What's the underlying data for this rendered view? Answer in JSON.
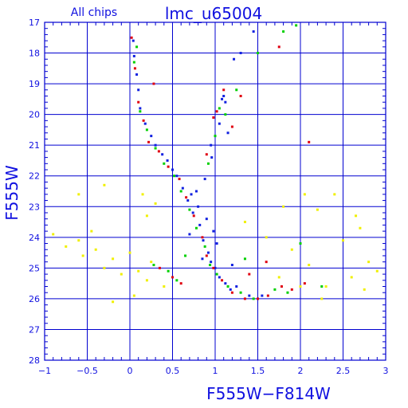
{
  "chart_data": {
    "type": "scatter",
    "title": "lmc_u65004",
    "subtitle": "All chips",
    "xlabel": "F555W−F814W",
    "ylabel": "F555W",
    "xlim": [
      -1,
      3
    ],
    "ylim": [
      28,
      17
    ],
    "y_axis_inverted": true,
    "grid": true,
    "legend": "none",
    "x_tick_labels": [
      "−1",
      "−0.5",
      "0",
      "0.5",
      "1",
      "1.5",
      "2",
      "2.5",
      "3"
    ],
    "y_tick_labels": [
      "17",
      "18",
      "19",
      "20",
      "21",
      "22",
      "23",
      "24",
      "25",
      "26",
      "27",
      "28"
    ],
    "x_ticks": [
      -1,
      -0.5,
      0,
      0.5,
      1,
      1.5,
      2,
      2.5,
      3
    ],
    "y_ticks": [
      17,
      18,
      19,
      20,
      21,
      22,
      23,
      24,
      25,
      26,
      27,
      28
    ],
    "colors": {
      "axis": "#0000d0",
      "text": "#1010e0",
      "series": [
        "#1020e0",
        "#e00010",
        "#00d000",
        "#f0f000"
      ]
    },
    "series": [
      {
        "color": "#1020e0",
        "points": [
          [
            0.74,
            23.2
          ],
          [
            0.82,
            23.6
          ],
          [
            0.86,
            24.1
          ],
          [
            0.92,
            24.5
          ],
          [
            0.95,
            24.8
          ],
          [
            1.0,
            25.0
          ],
          [
            1.05,
            25.3
          ],
          [
            1.12,
            25.5
          ],
          [
            1.18,
            25.7
          ],
          [
            0.68,
            22.8
          ],
          [
            0.62,
            22.4
          ],
          [
            0.55,
            22.0
          ],
          [
            0.5,
            21.8
          ],
          [
            0.44,
            21.5
          ],
          [
            0.38,
            21.3
          ],
          [
            0.3,
            21.0
          ],
          [
            0.25,
            20.7
          ],
          [
            0.18,
            20.3
          ],
          [
            0.12,
            19.8
          ],
          [
            0.1,
            19.2
          ],
          [
            0.08,
            18.7
          ],
          [
            0.05,
            18.1
          ],
          [
            0.04,
            17.6
          ],
          [
            1.08,
            19.5
          ],
          [
            1.1,
            19.4
          ],
          [
            1.12,
            19.6
          ],
          [
            1.05,
            20.3
          ],
          [
            1.15,
            20.6
          ],
          [
            0.96,
            21.4
          ],
          [
            0.88,
            22.1
          ],
          [
            0.78,
            22.5
          ],
          [
            0.7,
            23.9
          ],
          [
            0.85,
            24.7
          ],
          [
            1.25,
            25.6
          ],
          [
            1.4,
            25.9
          ],
          [
            1.55,
            25.9
          ],
          [
            1.2,
            24.9
          ],
          [
            0.9,
            23.4
          ],
          [
            0.8,
            23.0
          ],
          [
            0.72,
            22.6
          ],
          [
            1.22,
            18.2
          ],
          [
            1.3,
            18.0
          ],
          [
            1.45,
            17.3
          ],
          [
            0.95,
            21.0
          ],
          [
            1.02,
            24.2
          ],
          [
            0.98,
            23.8
          ]
        ]
      },
      {
        "color": "#e00010",
        "points": [
          [
            0.02,
            17.5
          ],
          [
            0.06,
            18.5
          ],
          [
            0.1,
            19.6
          ],
          [
            0.16,
            20.2
          ],
          [
            0.22,
            20.9
          ],
          [
            0.34,
            21.2
          ],
          [
            0.45,
            21.7
          ],
          [
            0.58,
            22.1
          ],
          [
            0.66,
            22.7
          ],
          [
            0.75,
            23.3
          ],
          [
            0.85,
            24.0
          ],
          [
            0.9,
            24.6
          ],
          [
            0.98,
            25.0
          ],
          [
            1.08,
            25.4
          ],
          [
            1.2,
            25.8
          ],
          [
            1.35,
            26.0
          ],
          [
            1.5,
            26.0
          ],
          [
            1.62,
            25.9
          ],
          [
            1.78,
            25.6
          ],
          [
            2.05,
            25.5
          ],
          [
            1.1,
            19.2
          ],
          [
            1.02,
            19.9
          ],
          [
            1.2,
            20.4
          ],
          [
            0.9,
            21.3
          ],
          [
            0.5,
            25.3
          ],
          [
            0.35,
            25.0
          ],
          [
            0.6,
            25.5
          ],
          [
            1.4,
            25.2
          ],
          [
            1.9,
            25.7
          ],
          [
            1.6,
            24.8
          ],
          [
            0.98,
            20.1
          ],
          [
            1.3,
            19.4
          ],
          [
            1.75,
            17.8
          ],
          [
            2.1,
            20.9
          ],
          [
            0.28,
            19.0
          ]
        ]
      },
      {
        "color": "#00d000",
        "points": [
          [
            0.12,
            19.9
          ],
          [
            0.2,
            20.5
          ],
          [
            0.3,
            21.1
          ],
          [
            0.4,
            21.6
          ],
          [
            0.52,
            22.0
          ],
          [
            0.6,
            22.5
          ],
          [
            0.7,
            23.1
          ],
          [
            0.78,
            23.7
          ],
          [
            0.88,
            24.3
          ],
          [
            0.94,
            24.9
          ],
          [
            1.02,
            25.2
          ],
          [
            1.15,
            25.6
          ],
          [
            1.3,
            25.8
          ],
          [
            1.45,
            26.0
          ],
          [
            1.7,
            25.7
          ],
          [
            1.85,
            25.8
          ],
          [
            2.25,
            25.6
          ],
          [
            1.12,
            20.0
          ],
          [
            1.0,
            20.7
          ],
          [
            0.92,
            21.6
          ],
          [
            1.05,
            19.8
          ],
          [
            1.25,
            19.2
          ],
          [
            1.5,
            18.0
          ],
          [
            1.8,
            17.3
          ],
          [
            1.95,
            17.1
          ],
          [
            0.45,
            25.1
          ],
          [
            0.55,
            25.4
          ],
          [
            0.28,
            24.9
          ],
          [
            1.35,
            24.7
          ],
          [
            2.0,
            24.2
          ],
          [
            0.05,
            18.3
          ],
          [
            0.08,
            17.8
          ],
          [
            0.65,
            24.6
          ]
        ]
      },
      {
        "color": "#f0f000",
        "points": [
          [
            -0.9,
            23.9
          ],
          [
            -0.75,
            24.3
          ],
          [
            -0.6,
            24.1
          ],
          [
            -0.55,
            24.6
          ],
          [
            -0.45,
            23.8
          ],
          [
            -0.4,
            24.4
          ],
          [
            -0.3,
            25.0
          ],
          [
            -0.2,
            24.7
          ],
          [
            -0.1,
            25.2
          ],
          [
            0.0,
            24.5
          ],
          [
            0.1,
            25.1
          ],
          [
            0.2,
            23.3
          ],
          [
            0.25,
            24.8
          ],
          [
            0.3,
            22.9
          ],
          [
            0.4,
            25.6
          ],
          [
            0.2,
            25.4
          ],
          [
            -0.6,
            22.6
          ],
          [
            -0.3,
            22.3
          ],
          [
            0.15,
            22.6
          ],
          [
            1.9,
            24.4
          ],
          [
            2.1,
            24.9
          ],
          [
            2.2,
            23.1
          ],
          [
            2.3,
            25.6
          ],
          [
            2.4,
            22.6
          ],
          [
            2.5,
            24.1
          ],
          [
            2.6,
            25.3
          ],
          [
            2.7,
            23.7
          ],
          [
            2.8,
            24.8
          ],
          [
            2.9,
            25.1
          ],
          [
            1.75,
            25.3
          ],
          [
            2.0,
            25.6
          ],
          [
            2.25,
            26.0
          ],
          [
            1.6,
            24.0
          ],
          [
            1.35,
            23.5
          ],
          [
            1.8,
            23.0
          ],
          [
            2.05,
            22.6
          ],
          [
            2.75,
            25.7
          ],
          [
            0.05,
            25.9
          ],
          [
            -0.2,
            26.1
          ],
          [
            2.65,
            23.3
          ]
        ]
      }
    ]
  }
}
